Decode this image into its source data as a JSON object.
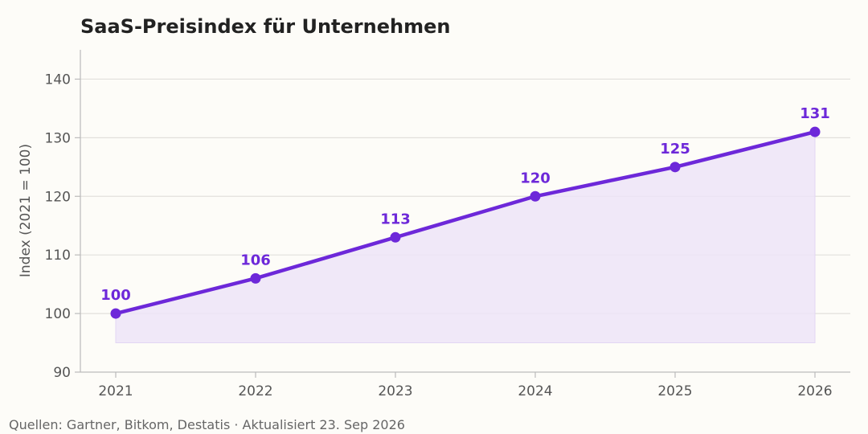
{
  "chart_data": {
    "type": "line",
    "title": "SaaS-Preisindex für Unternehmen",
    "xlabel": "",
    "ylabel": "Index (2021 = 100)",
    "x": [
      "2021",
      "2022",
      "2023",
      "2024",
      "2025",
      "2026"
    ],
    "series": [
      {
        "values": [
          100,
          106,
          113,
          120,
          125,
          131
        ]
      }
    ],
    "data_labels": [
      "100",
      "106",
      "113",
      "120",
      "125",
      "131"
    ],
    "ylim": [
      90,
      145
    ],
    "yticks": [
      90,
      100,
      110,
      120,
      130,
      140
    ],
    "ytick_labels": [
      "90",
      "100",
      "110",
      "120",
      "130",
      "140"
    ],
    "area_fill_baseline": 95,
    "grid": "horizontal",
    "colors": {
      "line": "#6d28d9",
      "area": "#ede4f8",
      "grid": "#e2e0dc",
      "axis": "#bbbbbb"
    }
  },
  "footer": "Quellen: Gartner, Bitkom, Destatis · Aktualisiert 23. Sep 2026"
}
